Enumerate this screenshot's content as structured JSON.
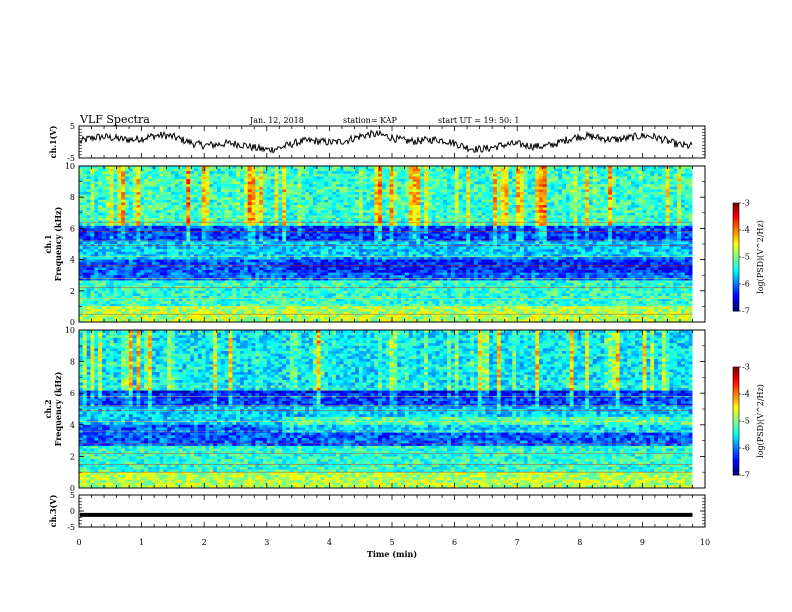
{
  "header": {
    "title": "VLF Spectra",
    "date": "Jan. 12, 2018",
    "station": "station= KAP",
    "start": "start  UT =  19: 50: 1"
  },
  "chart_data": [
    {
      "type": "line",
      "ylabel": "ch.1(V)",
      "ylim": [
        -5,
        5
      ],
      "yticks": [
        "5",
        "-5"
      ],
      "color": "#000000"
    },
    {
      "type": "heatmap",
      "ylabel": "ch.1\nFrequency (kHz)",
      "ylim": [
        0,
        10
      ],
      "yticks": [
        "0",
        "2",
        "4",
        "6",
        "8",
        "10"
      ]
    },
    {
      "type": "heatmap",
      "ylabel": "ch.2\nFrequency (kHz)",
      "ylim": [
        0,
        10
      ],
      "yticks": [
        "0",
        "2",
        "4",
        "6",
        "8",
        "10"
      ]
    },
    {
      "type": "line",
      "ylabel": "ch.3(V)",
      "ylim": [
        -5,
        5
      ],
      "yticks": [
        "5",
        "0",
        "-5"
      ],
      "color": "#000000"
    }
  ],
  "xaxis": {
    "label": "Time (min)",
    "xlim": [
      0,
      10
    ],
    "ticks": [
      "0",
      "1",
      "2",
      "3",
      "4",
      "5",
      "6",
      "7",
      "8",
      "9",
      "10"
    ],
    "data_end": 9.8
  },
  "colorbar": {
    "label": "log(PSD)(V^2/Hz)",
    "ticks": [
      "-3",
      "-4",
      "-5",
      "-6",
      "-7"
    ],
    "range": [
      -7,
      -3
    ]
  }
}
